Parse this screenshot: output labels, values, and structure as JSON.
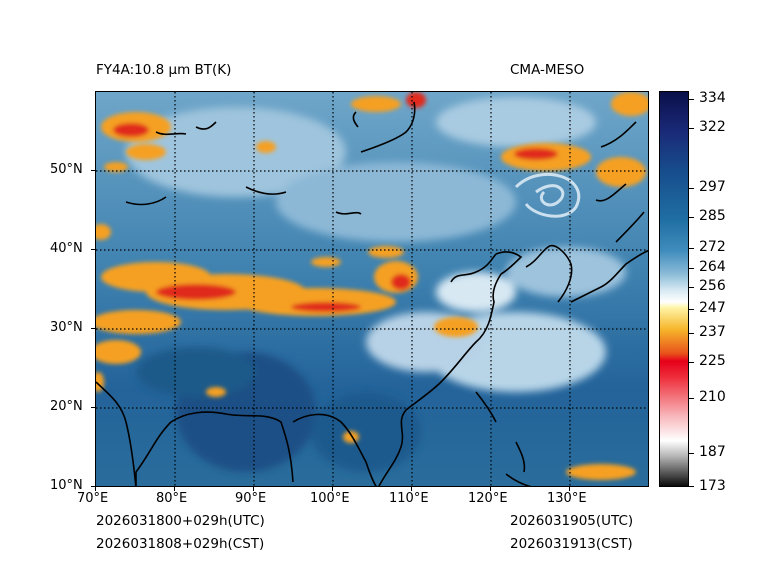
{
  "title_left": "FY4A:10.8 μm BT(K)",
  "title_right": "CMA-MESO",
  "footer": {
    "left_utc": "2026031800+029h(UTC)",
    "left_cst": "2026031808+029h(CST)",
    "right_utc": "2026031905(UTC)",
    "right_cst": "2026031913(CST)"
  },
  "map": {
    "lon_range": [
      70,
      140
    ],
    "lat_range": [
      10,
      60
    ],
    "lon_ticks": [
      "70°E",
      "80°E",
      "90°E",
      "100°E",
      "110°E",
      "120°E",
      "130°E"
    ],
    "lat_ticks": [
      "10°N",
      "20°N",
      "30°N",
      "40°N",
      "50°N"
    ]
  },
  "colorbar": {
    "min": 173,
    "max": 334,
    "labels": [
      "334",
      "322",
      "297",
      "285",
      "272",
      "264",
      "256",
      "247",
      "237",
      "225",
      "210",
      "187",
      "173"
    ]
  },
  "colors": {
    "cold_cloud_red": "#e02a1b",
    "cold_cloud_orange": "#f5a020",
    "ocean_blue": "#2c6e99",
    "land_blue": "#1f5a8c",
    "clear_light": "#bcd8ea"
  }
}
